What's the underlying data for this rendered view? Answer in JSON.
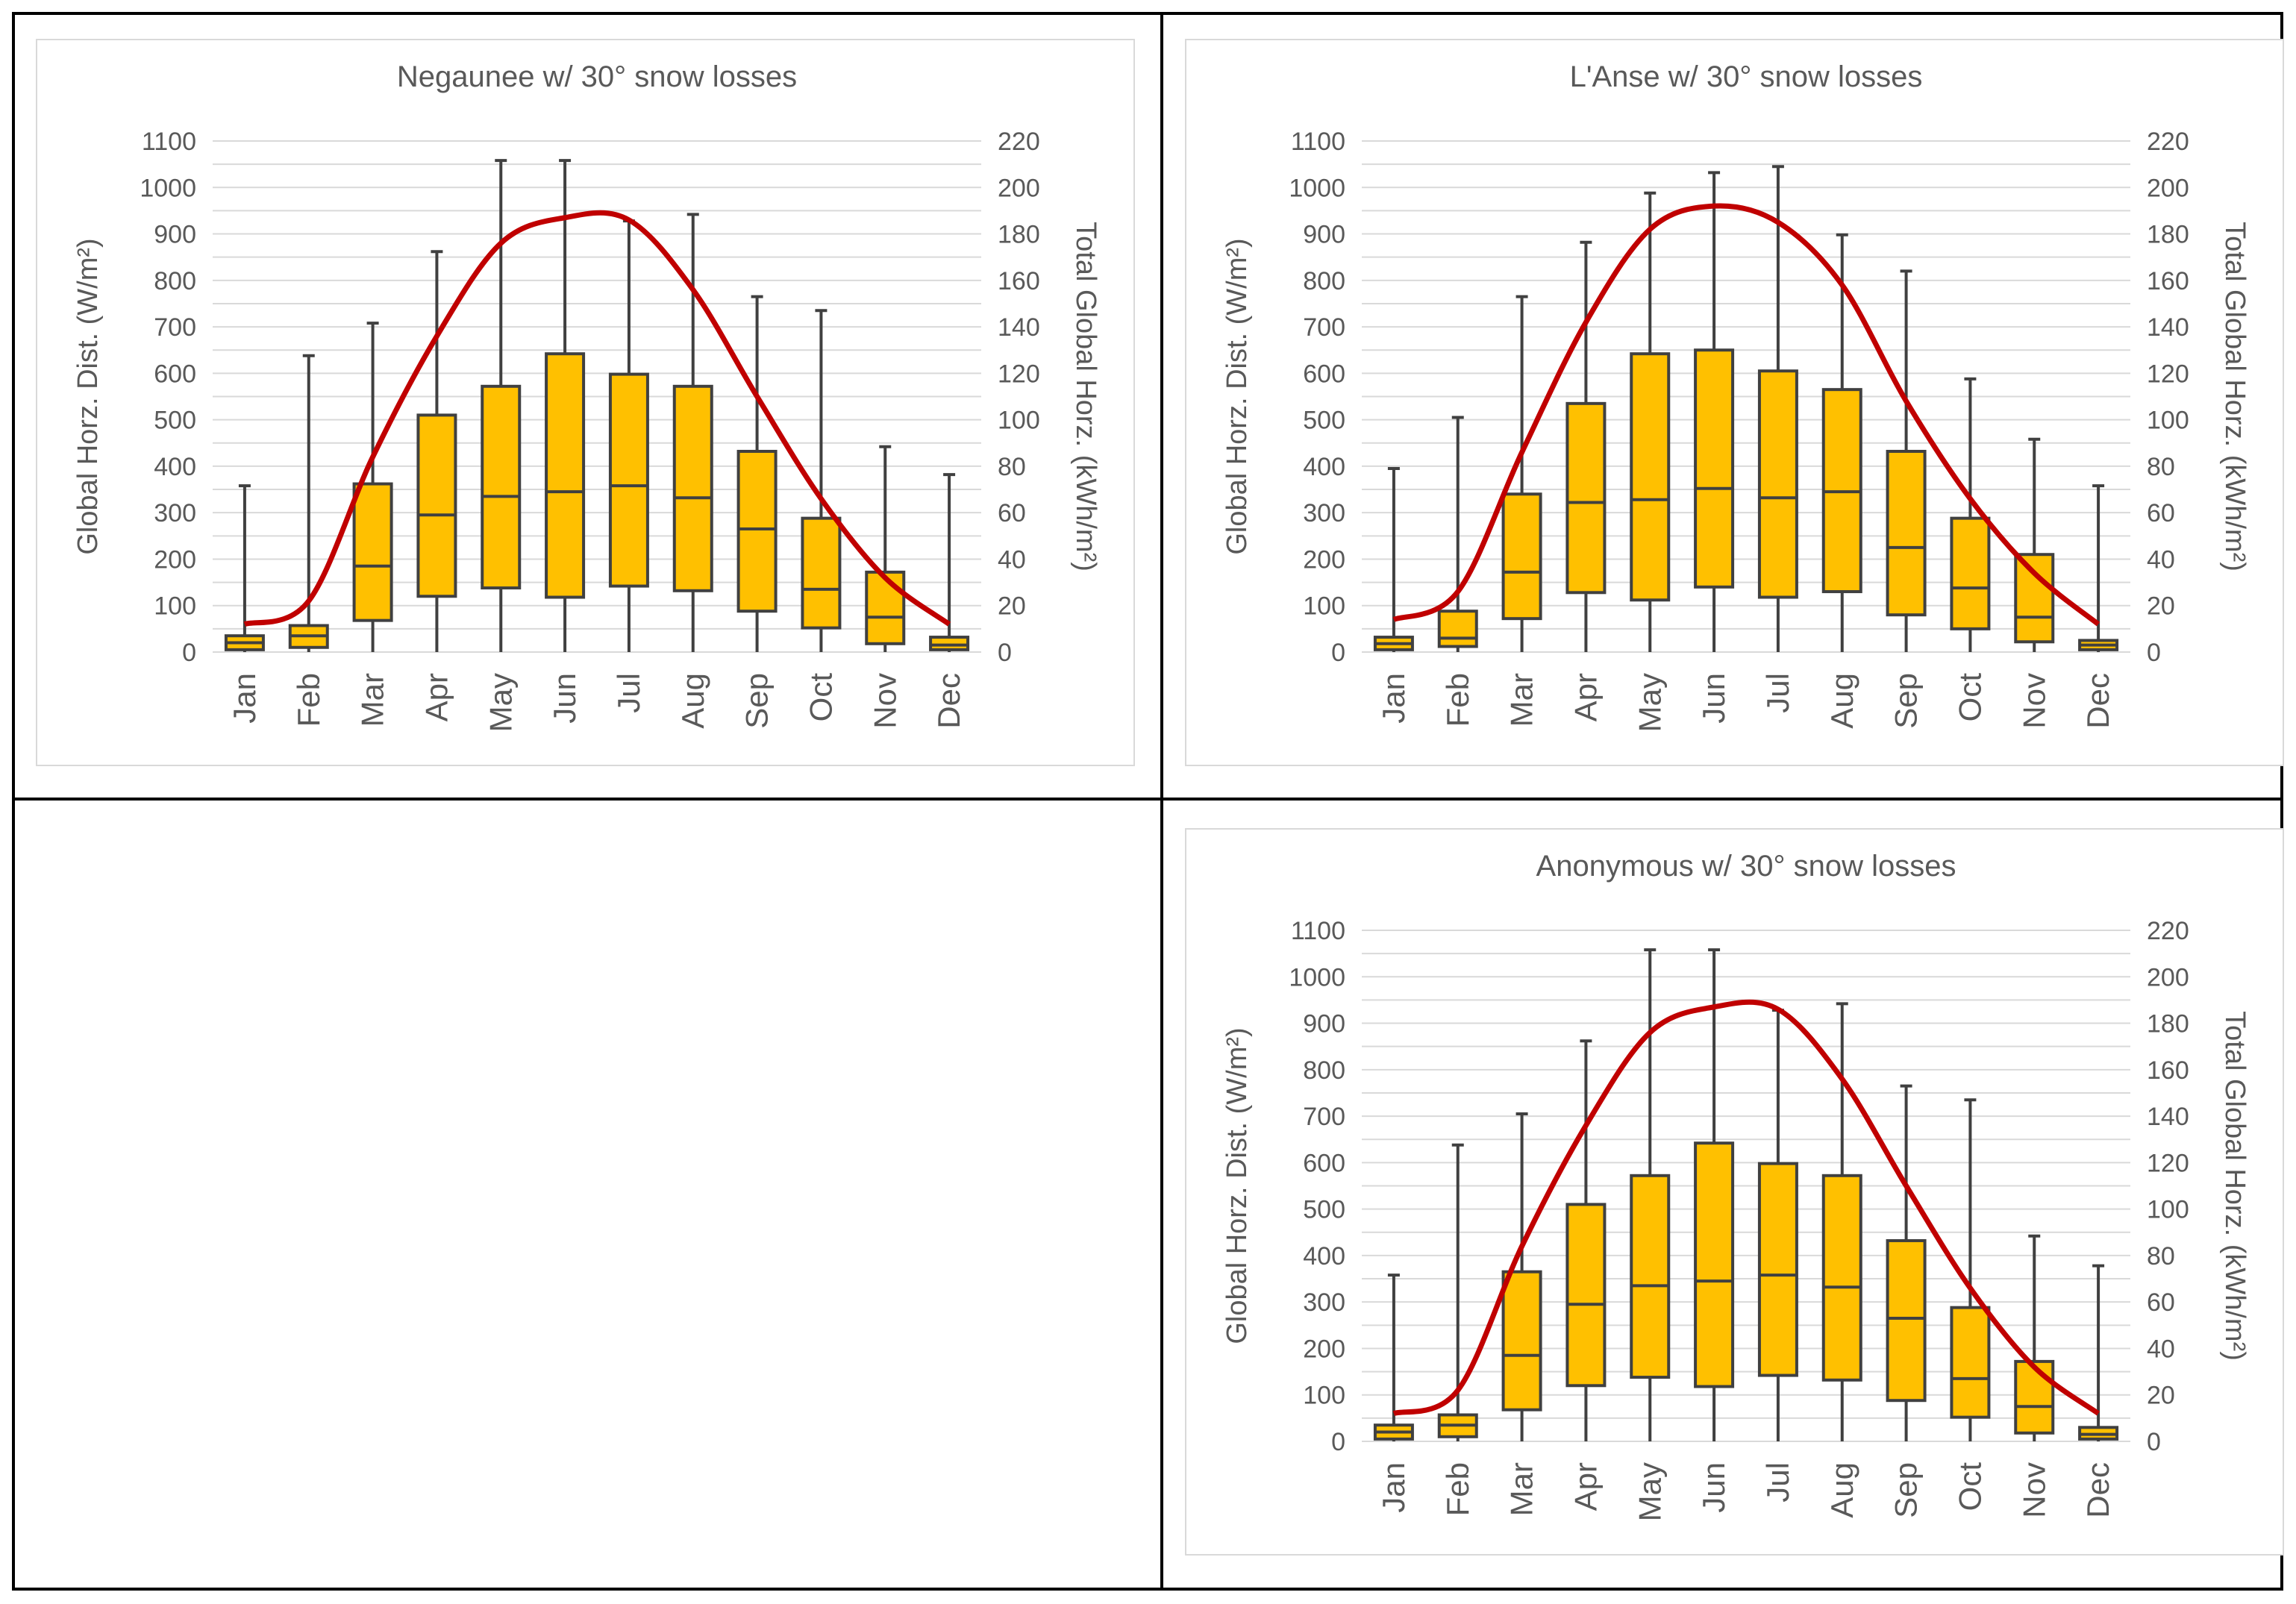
{
  "charts": [
    {
      "id": "negaunee",
      "title": "Negaunee w/ 30° snow losses",
      "chart_data": {
        "type": "box",
        "title": "Negaunee w/ 30° snow losses",
        "categories": [
          "Jan",
          "Feb",
          "Mar",
          "Apr",
          "May",
          "Jun",
          "Jul",
          "Aug",
          "Sep",
          "Oct",
          "Nov",
          "Dec"
        ],
        "ylabel_left": "Global Horz. Dist. (W/m²)",
        "ylabel_right": "Total Global Horz. (kWh/m²)",
        "ylim_left": [
          0,
          1100
        ],
        "ylim_right": [
          0,
          220
        ],
        "yticks_left": [
          "0",
          "100",
          "200",
          "300",
          "400",
          "500",
          "600",
          "700",
          "800",
          "900",
          "1000",
          "1100"
        ],
        "yticks_right": [
          "0",
          "20",
          "40",
          "60",
          "80",
          "100",
          "120",
          "140",
          "160",
          "180",
          "200",
          "220"
        ],
        "box_series": [
          {
            "min": 0,
            "q1": 5,
            "median": 20,
            "q3": 35,
            "max": 358
          },
          {
            "min": 0,
            "q1": 10,
            "median": 35,
            "q3": 57,
            "max": 638
          },
          {
            "min": 0,
            "q1": 68,
            "median": 185,
            "q3": 362,
            "max": 708
          },
          {
            "min": 0,
            "q1": 120,
            "median": 295,
            "q3": 510,
            "max": 862
          },
          {
            "min": 0,
            "q1": 138,
            "median": 335,
            "q3": 572,
            "max": 1058
          },
          {
            "min": 0,
            "q1": 118,
            "median": 345,
            "q3": 642,
            "max": 1058
          },
          {
            "min": 0,
            "q1": 142,
            "median": 358,
            "q3": 598,
            "max": 928
          },
          {
            "min": 0,
            "q1": 132,
            "median": 332,
            "q3": 572,
            "max": 942
          },
          {
            "min": 0,
            "q1": 88,
            "median": 265,
            "q3": 432,
            "max": 765
          },
          {
            "min": 0,
            "q1": 52,
            "median": 135,
            "q3": 288,
            "max": 735
          },
          {
            "min": 0,
            "q1": 18,
            "median": 75,
            "q3": 172,
            "max": 442
          },
          {
            "min": 0,
            "q1": 5,
            "median": 15,
            "q3": 32,
            "max": 382
          }
        ],
        "line_series": {
          "name": "Total Global Horz.",
          "axis": "right",
          "values": [
            12,
            22,
            84,
            136,
            176,
            187,
            186,
            156,
            110,
            66,
            32,
            12
          ]
        },
        "grid": true,
        "legend": "none"
      }
    },
    {
      "id": "lanse",
      "title": "L'Anse w/ 30° snow losses",
      "chart_data": {
        "type": "box",
        "title": "L'Anse w/ 30° snow losses",
        "categories": [
          "Jan",
          "Feb",
          "Mar",
          "Apr",
          "May",
          "Jun",
          "Jul",
          "Aug",
          "Sep",
          "Oct",
          "Nov",
          "Dec"
        ],
        "ylabel_left": "Global Horz. Dist. (W/m²)",
        "ylabel_right": "Total Global Horz. (kWh/m²)",
        "ylim_left": [
          0,
          1100
        ],
        "ylim_right": [
          0,
          220
        ],
        "yticks_left": [
          "0",
          "100",
          "200",
          "300",
          "400",
          "500",
          "600",
          "700",
          "800",
          "900",
          "1000",
          "1100"
        ],
        "yticks_right": [
          "0",
          "20",
          "40",
          "60",
          "80",
          "100",
          "120",
          "140",
          "160",
          "180",
          "200",
          "220"
        ],
        "box_series": [
          {
            "min": 0,
            "q1": 5,
            "median": 18,
            "q3": 32,
            "max": 395
          },
          {
            "min": 0,
            "q1": 12,
            "median": 30,
            "q3": 88,
            "max": 505
          },
          {
            "min": 0,
            "q1": 72,
            "median": 172,
            "q3": 340,
            "max": 765
          },
          {
            "min": 0,
            "q1": 128,
            "median": 322,
            "q3": 535,
            "max": 882
          },
          {
            "min": 0,
            "q1": 112,
            "median": 328,
            "q3": 642,
            "max": 988
          },
          {
            "min": 0,
            "q1": 140,
            "median": 352,
            "q3": 650,
            "max": 1032
          },
          {
            "min": 0,
            "q1": 118,
            "median": 332,
            "q3": 605,
            "max": 1045
          },
          {
            "min": 0,
            "q1": 130,
            "median": 345,
            "q3": 565,
            "max": 898
          },
          {
            "min": 0,
            "q1": 80,
            "median": 225,
            "q3": 432,
            "max": 820
          },
          {
            "min": 0,
            "q1": 50,
            "median": 138,
            "q3": 288,
            "max": 588
          },
          {
            "min": 0,
            "q1": 22,
            "median": 75,
            "q3": 210,
            "max": 458
          },
          {
            "min": 0,
            "q1": 5,
            "median": 15,
            "q3": 25,
            "max": 358
          }
        ],
        "line_series": {
          "name": "Total Global Horz.",
          "axis": "right",
          "values": [
            14,
            26,
            86,
            142,
            182,
            192,
            185,
            158,
            108,
            66,
            34,
            12
          ]
        },
        "grid": true,
        "legend": "none"
      }
    },
    {
      "id": "anonymous",
      "title": "Anonymous w/ 30° snow losses",
      "chart_data": {
        "type": "box",
        "title": "Anonymous w/ 30° snow losses",
        "categories": [
          "Jan",
          "Feb",
          "Mar",
          "Apr",
          "May",
          "Jun",
          "Jul",
          "Aug",
          "Sep",
          "Oct",
          "Nov",
          "Dec"
        ],
        "ylabel_left": "Global Horz. Dist. (W/m²)",
        "ylabel_right": "Total Global Horz. (kWh/m²)",
        "ylim_left": [
          0,
          1100
        ],
        "ylim_right": [
          0,
          220
        ],
        "yticks_left": [
          "0",
          "100",
          "200",
          "300",
          "400",
          "500",
          "600",
          "700",
          "800",
          "900",
          "1000",
          "1100"
        ],
        "yticks_right": [
          "0",
          "20",
          "40",
          "60",
          "80",
          "100",
          "120",
          "140",
          "160",
          "180",
          "200",
          "220"
        ],
        "box_series": [
          {
            "min": 0,
            "q1": 5,
            "median": 20,
            "q3": 35,
            "max": 358
          },
          {
            "min": 0,
            "q1": 10,
            "median": 35,
            "q3": 57,
            "max": 638
          },
          {
            "min": 0,
            "q1": 68,
            "median": 185,
            "q3": 365,
            "max": 705
          },
          {
            "min": 0,
            "q1": 120,
            "median": 295,
            "q3": 510,
            "max": 862
          },
          {
            "min": 0,
            "q1": 138,
            "median": 335,
            "q3": 572,
            "max": 1058
          },
          {
            "min": 0,
            "q1": 118,
            "median": 345,
            "q3": 642,
            "max": 1058
          },
          {
            "min": 0,
            "q1": 142,
            "median": 358,
            "q3": 598,
            "max": 928
          },
          {
            "min": 0,
            "q1": 132,
            "median": 332,
            "q3": 572,
            "max": 942
          },
          {
            "min": 0,
            "q1": 88,
            "median": 265,
            "q3": 432,
            "max": 765
          },
          {
            "min": 0,
            "q1": 52,
            "median": 135,
            "q3": 288,
            "max": 735
          },
          {
            "min": 0,
            "q1": 18,
            "median": 75,
            "q3": 172,
            "max": 442
          },
          {
            "min": 0,
            "q1": 5,
            "median": 15,
            "q3": 30,
            "max": 378
          }
        ],
        "line_series": {
          "name": "Total Global Horz.",
          "axis": "right",
          "values": [
            12,
            22,
            84,
            136,
            176,
            187,
            186,
            156,
            110,
            66,
            32,
            12
          ]
        },
        "grid": true,
        "legend": "none"
      }
    }
  ],
  "colors": {
    "box_fill": "#ffc000",
    "box_stroke": "#404040",
    "line": "#c00000",
    "grid": "#d9d9d9",
    "text": "#595959",
    "title_text": "#595959"
  }
}
